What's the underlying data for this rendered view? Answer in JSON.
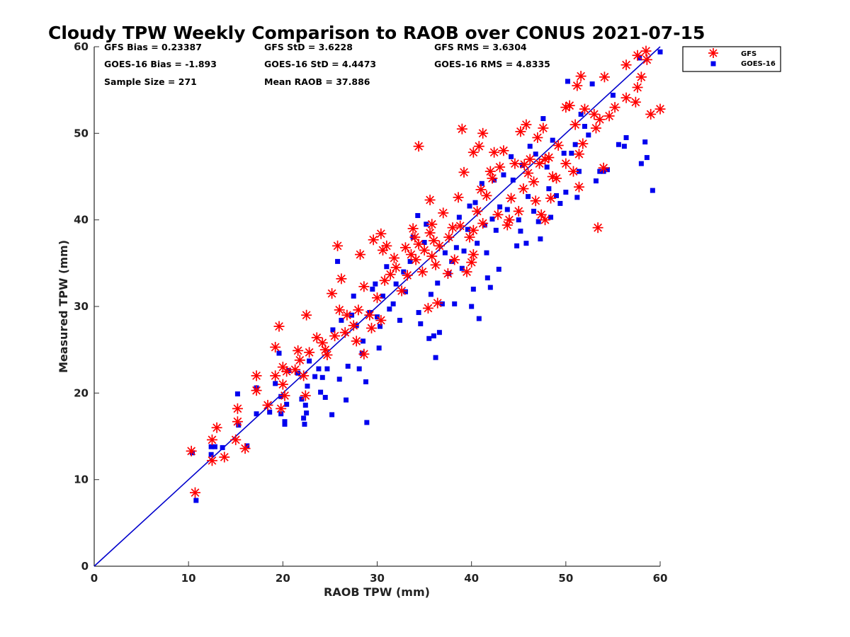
{
  "chart_data": {
    "type": "scatter",
    "title": "Cloudy TPW Weekly Comparison to RAOB over CONUS 2021-07-15",
    "xlabel": "RAOB TPW (mm)",
    "ylabel": "Measured TPW (mm)",
    "xlim": [
      0,
      60
    ],
    "ylim": [
      0,
      60
    ],
    "xticks": [
      "0",
      "10",
      "20",
      "30",
      "40",
      "50",
      "60"
    ],
    "yticks": [
      "0",
      "10",
      "20",
      "30",
      "40",
      "50",
      "60"
    ],
    "grid": false,
    "legend_position": "top-right-outside",
    "reference_line": {
      "description": "1:1 line",
      "from": [
        0,
        0
      ],
      "to": [
        60,
        60
      ],
      "color": "#0000cc"
    },
    "stats": [
      "GFS Bias = 0.23387",
      "GFS StD = 3.6228",
      "GFS RMS = 3.6304",
      "GOES-16 Bias = -1.893",
      "GOES-16 StD = 4.4473",
      "GOES-16 RMS = 4.8335",
      "Sample Size = 271",
      "Mean RAOB = 37.886"
    ],
    "series": [
      {
        "name": "GFS",
        "marker": "asterisk",
        "color": "#ff0000",
        "points": [
          [
            10.3,
            13.3
          ],
          [
            10.7,
            8.5
          ],
          [
            12.5,
            14.6
          ],
          [
            12.5,
            12.2
          ],
          [
            13,
            16
          ],
          [
            13.8,
            12.6
          ],
          [
            15,
            14.6
          ],
          [
            15.2,
            18.2
          ],
          [
            15.2,
            16.7
          ],
          [
            16,
            13.6
          ],
          [
            17.2,
            22
          ],
          [
            17.2,
            20.3
          ],
          [
            18.4,
            18.6
          ],
          [
            19.2,
            22
          ],
          [
            19.2,
            25.3
          ],
          [
            19.6,
            27.7
          ],
          [
            19.8,
            18.2
          ],
          [
            20,
            21
          ],
          [
            20,
            23
          ],
          [
            20.2,
            19.7
          ],
          [
            20.4,
            22.5
          ],
          [
            21.3,
            22.7
          ],
          [
            21.6,
            24.9
          ],
          [
            21.8,
            23.8
          ],
          [
            22.2,
            22
          ],
          [
            22.4,
            19.7
          ],
          [
            22.5,
            29
          ],
          [
            22.8,
            24.7
          ],
          [
            23.6,
            26.4
          ],
          [
            24.2,
            25.8
          ],
          [
            24.5,
            25
          ],
          [
            24.7,
            24.4
          ],
          [
            25.2,
            31.5
          ],
          [
            25.5,
            26.6
          ],
          [
            25.8,
            37
          ],
          [
            26,
            29.6
          ],
          [
            26.2,
            33.2
          ],
          [
            26.6,
            27
          ],
          [
            26.8,
            29
          ],
          [
            27.5,
            27.8
          ],
          [
            27.8,
            26
          ],
          [
            28,
            29.6
          ],
          [
            28.2,
            36
          ],
          [
            28.6,
            24.5
          ],
          [
            28.6,
            32.3
          ],
          [
            29.2,
            29
          ],
          [
            29.4,
            27.5
          ],
          [
            29.6,
            37.7
          ],
          [
            30,
            31
          ],
          [
            30.4,
            28.4
          ],
          [
            30.4,
            38.4
          ],
          [
            30.6,
            36.5
          ],
          [
            30.8,
            33
          ],
          [
            31,
            37
          ],
          [
            31.4,
            33.7
          ],
          [
            31.8,
            35.6
          ],
          [
            32,
            34.5
          ],
          [
            32.6,
            31.8
          ],
          [
            33,
            36.8
          ],
          [
            33.2,
            33.6
          ],
          [
            33.6,
            36
          ],
          [
            33.8,
            39
          ],
          [
            34,
            38
          ],
          [
            34.1,
            35.4
          ],
          [
            34.4,
            37.2
          ],
          [
            34.4,
            48.5
          ],
          [
            34.8,
            34
          ],
          [
            35,
            36.5
          ],
          [
            35.4,
            29.8
          ],
          [
            35.6,
            42.3
          ],
          [
            35.6,
            38.5
          ],
          [
            35.8,
            35.8
          ],
          [
            35.8,
            39.5
          ],
          [
            36,
            37.6
          ],
          [
            36.2,
            34.8
          ],
          [
            36.4,
            30.4
          ],
          [
            36.6,
            37
          ],
          [
            37,
            40.8
          ],
          [
            37.5,
            33.8
          ],
          [
            37.6,
            38
          ],
          [
            38,
            39.1
          ],
          [
            38.2,
            35.4
          ],
          [
            38.6,
            42.6
          ],
          [
            38.8,
            39.3
          ],
          [
            39,
            50.5
          ],
          [
            39.2,
            45.5
          ],
          [
            39.5,
            34
          ],
          [
            39.8,
            38
          ],
          [
            40,
            35.1
          ],
          [
            40.2,
            36
          ],
          [
            40.2,
            38.8
          ],
          [
            40.2,
            47.8
          ],
          [
            40.6,
            41
          ],
          [
            40.8,
            48.5
          ],
          [
            41,
            43.5
          ],
          [
            41.2,
            39.6
          ],
          [
            41.2,
            50
          ],
          [
            41.6,
            42.8
          ],
          [
            42,
            45.6
          ],
          [
            42.2,
            44.8
          ],
          [
            42.4,
            47.8
          ],
          [
            42.8,
            40.6
          ],
          [
            43,
            46.1
          ],
          [
            43.4,
            48
          ],
          [
            43.8,
            39.4
          ],
          [
            44,
            40
          ],
          [
            44.2,
            42.5
          ],
          [
            44.6,
            46.5
          ],
          [
            45,
            41
          ],
          [
            45.2,
            50.2
          ],
          [
            45.5,
            43.6
          ],
          [
            45.6,
            46.4
          ],
          [
            45.8,
            51
          ],
          [
            46,
            45.4
          ],
          [
            46.2,
            47
          ],
          [
            46.6,
            44.4
          ],
          [
            46.8,
            42.2
          ],
          [
            47,
            49.5
          ],
          [
            47.2,
            46.5
          ],
          [
            47.4,
            40.6
          ],
          [
            47.6,
            50.6
          ],
          [
            47.8,
            40
          ],
          [
            47.8,
            47
          ],
          [
            48.2,
            47.2
          ],
          [
            48.4,
            42.5
          ],
          [
            48.6,
            45
          ],
          [
            49,
            44.8
          ],
          [
            49.2,
            48.6
          ],
          [
            50,
            53
          ],
          [
            50,
            46.5
          ],
          [
            50.4,
            53.2
          ],
          [
            50.8,
            45.6
          ],
          [
            51,
            51
          ],
          [
            51.2,
            55.5
          ],
          [
            51.4,
            47.6
          ],
          [
            51.4,
            43.8
          ],
          [
            51.6,
            56.6
          ],
          [
            51.8,
            48.8
          ],
          [
            52,
            52.8
          ],
          [
            53,
            52.2
          ],
          [
            53.2,
            50.6
          ],
          [
            53.4,
            39.1
          ],
          [
            53.6,
            51.6
          ],
          [
            54,
            46
          ],
          [
            54.1,
            56.5
          ],
          [
            54.6,
            52
          ],
          [
            55.2,
            53
          ],
          [
            56.4,
            57.9
          ],
          [
            56.4,
            54.1
          ],
          [
            57.4,
            53.6
          ],
          [
            57.6,
            55.3
          ],
          [
            57.6,
            59
          ],
          [
            58,
            56.5
          ],
          [
            58.5,
            59.5
          ],
          [
            58.6,
            58.5
          ],
          [
            59,
            52.2
          ],
          [
            60,
            52.8
          ]
        ]
      },
      {
        "name": "GOES-16",
        "marker": "square",
        "color": "#0000ee",
        "points": [
          [
            10.4,
            13.1
          ],
          [
            10.8,
            7.6
          ],
          [
            12.4,
            13.8
          ],
          [
            12.4,
            12.9
          ],
          [
            12.8,
            13.8
          ],
          [
            13.6,
            13.7
          ],
          [
            15.2,
            19.9
          ],
          [
            15.3,
            16.3
          ],
          [
            16.2,
            13.9
          ],
          [
            17.2,
            17.6
          ],
          [
            17.2,
            20.6
          ],
          [
            18.6,
            17.8
          ],
          [
            19.2,
            21.1
          ],
          [
            19.6,
            24.6
          ],
          [
            19.8,
            19.6
          ],
          [
            19.8,
            17.6
          ],
          [
            20.2,
            16.7
          ],
          [
            20.2,
            16.4
          ],
          [
            20.4,
            18.7
          ],
          [
            20.6,
            22.6
          ],
          [
            21.6,
            22.3
          ],
          [
            22,
            19.3
          ],
          [
            22.2,
            17.1
          ],
          [
            22.3,
            16.4
          ],
          [
            22.4,
            18.6
          ],
          [
            22.5,
            17.7
          ],
          [
            22.6,
            20.8
          ],
          [
            22.8,
            23.7
          ],
          [
            23.4,
            21.9
          ],
          [
            23.8,
            22.8
          ],
          [
            24,
            20.1
          ],
          [
            24.2,
            21.8
          ],
          [
            24.5,
            19.5
          ],
          [
            24.7,
            22.8
          ],
          [
            25.2,
            17.5
          ],
          [
            25.3,
            27.3
          ],
          [
            25.8,
            35.2
          ],
          [
            26,
            21.6
          ],
          [
            26.2,
            28.4
          ],
          [
            26.7,
            19.2
          ],
          [
            26.9,
            23.1
          ],
          [
            27.3,
            29
          ],
          [
            27.5,
            31.2
          ],
          [
            27.8,
            27.8
          ],
          [
            28.1,
            22.8
          ],
          [
            28.4,
            24.6
          ],
          [
            28.5,
            26
          ],
          [
            28.8,
            21.3
          ],
          [
            28.9,
            16.6
          ],
          [
            29.2,
            29.3
          ],
          [
            29.5,
            32
          ],
          [
            29.8,
            32.6
          ],
          [
            30,
            28.8
          ],
          [
            30.2,
            25.2
          ],
          [
            30.3,
            27.7
          ],
          [
            30.6,
            31.2
          ],
          [
            31,
            34.6
          ],
          [
            31.3,
            29.7
          ],
          [
            31.7,
            30.3
          ],
          [
            32,
            32.6
          ],
          [
            32.4,
            28.4
          ],
          [
            32.8,
            34
          ],
          [
            33,
            31.7
          ],
          [
            33.5,
            35.2
          ],
          [
            33.8,
            38
          ],
          [
            34.3,
            40.5
          ],
          [
            34.4,
            29.3
          ],
          [
            34.6,
            28
          ],
          [
            35,
            37.4
          ],
          [
            35.2,
            39.5
          ],
          [
            35.5,
            26.3
          ],
          [
            35.7,
            31.4
          ],
          [
            36,
            26.6
          ],
          [
            36.2,
            24.1
          ],
          [
            36.4,
            32.7
          ],
          [
            36.6,
            27
          ],
          [
            36.9,
            30.3
          ],
          [
            37.2,
            36.2
          ],
          [
            37.6,
            33.8
          ],
          [
            37.9,
            35.2
          ],
          [
            38.2,
            30.3
          ],
          [
            38.4,
            36.8
          ],
          [
            38.7,
            40.3
          ],
          [
            39,
            34.4
          ],
          [
            39.2,
            36.4
          ],
          [
            39.6,
            38.9
          ],
          [
            39.8,
            41.6
          ],
          [
            40,
            30
          ],
          [
            40.2,
            32
          ],
          [
            40.4,
            42
          ],
          [
            40.6,
            37.3
          ],
          [
            40.8,
            28.6
          ],
          [
            41.1,
            44.2
          ],
          [
            41.4,
            39.4
          ],
          [
            41.6,
            36.2
          ],
          [
            41.7,
            33.3
          ],
          [
            42,
            32.2
          ],
          [
            42.2,
            40.1
          ],
          [
            42.4,
            44.6
          ],
          [
            42.6,
            38.8
          ],
          [
            42.9,
            34.3
          ],
          [
            43,
            41.5
          ],
          [
            43.4,
            45.2
          ],
          [
            43.8,
            41.2
          ],
          [
            44.2,
            47.3
          ],
          [
            44.4,
            44.6
          ],
          [
            44.8,
            37
          ],
          [
            45,
            40
          ],
          [
            45.2,
            38.7
          ],
          [
            45.4,
            46.3
          ],
          [
            45.8,
            37.3
          ],
          [
            46,
            42.7
          ],
          [
            46.2,
            48.5
          ],
          [
            46.6,
            41
          ],
          [
            46.8,
            47.6
          ],
          [
            47.1,
            39.8
          ],
          [
            47.3,
            37.8
          ],
          [
            47.6,
            51.7
          ],
          [
            48,
            46.1
          ],
          [
            48.2,
            43.6
          ],
          [
            48.4,
            40.3
          ],
          [
            48.6,
            49.2
          ],
          [
            49,
            42.8
          ],
          [
            49.4,
            41.9
          ],
          [
            49.8,
            47.7
          ],
          [
            50,
            43.2
          ],
          [
            50.2,
            56
          ],
          [
            50.6,
            47.7
          ],
          [
            51,
            48.7
          ],
          [
            51.2,
            42.6
          ],
          [
            51.4,
            45.6
          ],
          [
            51.6,
            52.2
          ],
          [
            52,
            50.8
          ],
          [
            52.4,
            49.8
          ],
          [
            52.8,
            55.7
          ],
          [
            53.2,
            44.5
          ],
          [
            53.6,
            45.6
          ],
          [
            54,
            45.6
          ],
          [
            54.4,
            45.8
          ],
          [
            55,
            54.4
          ],
          [
            55.6,
            48.7
          ],
          [
            56.2,
            48.5
          ],
          [
            56.4,
            49.5
          ],
          [
            57.8,
            58.7
          ],
          [
            58,
            46.5
          ],
          [
            58.4,
            49
          ],
          [
            58.6,
            47.2
          ],
          [
            59.2,
            43.4
          ],
          [
            60,
            59.4
          ]
        ]
      }
    ]
  }
}
